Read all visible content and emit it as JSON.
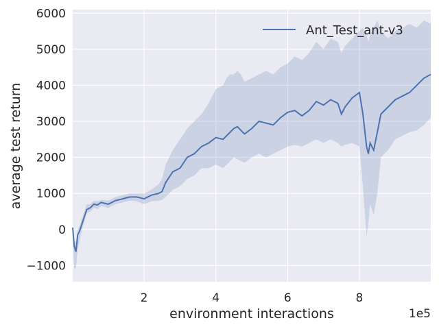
{
  "chart_data": {
    "type": "line",
    "xlabel": "environment interactions",
    "ylabel": "average test return",
    "x_offset_label": "1e5",
    "xlim": [
      0.01,
      9.99
    ],
    "ylim": [
      -1450,
      6100
    ],
    "xticks": [
      2,
      4,
      6,
      8
    ],
    "xtick_labels": [
      "2",
      "4",
      "6",
      "8"
    ],
    "yticks": [
      -1000,
      0,
      1000,
      2000,
      3000,
      4000,
      5000,
      6000
    ],
    "ytick_labels": [
      "−1000",
      "0",
      "1000",
      "2000",
      "3000",
      "4000",
      "5000",
      "6000"
    ],
    "grid": true,
    "legend_position": "top-right",
    "colors": {
      "background": "#eaeaf2",
      "grid": "#ffffff",
      "line": "#4c72b0",
      "band": "#4c72b0"
    },
    "series": [
      {
        "name": "Ant_Test_ant-v3",
        "x": [
          0.01,
          0.05,
          0.1,
          0.15,
          0.2,
          0.3,
          0.4,
          0.5,
          0.6,
          0.7,
          0.8,
          1.0,
          1.2,
          1.4,
          1.6,
          1.8,
          2.0,
          2.2,
          2.4,
          2.5,
          2.6,
          2.8,
          3.0,
          3.2,
          3.4,
          3.6,
          3.8,
          4.0,
          4.2,
          4.3,
          4.4,
          4.5,
          4.6,
          4.7,
          4.8,
          5.0,
          5.2,
          5.4,
          5.6,
          5.8,
          6.0,
          6.2,
          6.4,
          6.6,
          6.8,
          7.0,
          7.2,
          7.4,
          7.5,
          7.6,
          7.8,
          8.0,
          8.1,
          8.2,
          8.25,
          8.3,
          8.4,
          8.5,
          8.6,
          8.8,
          9.0,
          9.2,
          9.4,
          9.6,
          9.8,
          9.99
        ],
        "values": [
          50,
          -450,
          -620,
          -150,
          -50,
          250,
          550,
          600,
          700,
          680,
          750,
          700,
          800,
          850,
          900,
          900,
          850,
          950,
          1000,
          1050,
          1300,
          1600,
          1700,
          2000,
          2100,
          2300,
          2400,
          2550,
          2500,
          2600,
          2700,
          2800,
          2850,
          2750,
          2650,
          2800,
          3000,
          2950,
          2900,
          3100,
          3250,
          3300,
          3150,
          3300,
          3550,
          3450,
          3600,
          3500,
          3200,
          3400,
          3650,
          3800,
          3200,
          2300,
          2100,
          2400,
          2200,
          2700,
          3200,
          3400,
          3600,
          3700,
          3800,
          4000,
          4200,
          4300
        ],
        "upper": [
          150,
          -300,
          -350,
          0,
          100,
          400,
          700,
          700,
          800,
          780,
          820,
          800,
          900,
          950,
          1000,
          1000,
          1000,
          1100,
          1250,
          1400,
          1800,
          2200,
          2500,
          2800,
          3000,
          3200,
          3500,
          3900,
          4000,
          4200,
          4300,
          4300,
          4400,
          4300,
          4100,
          4200,
          4300,
          4400,
          4300,
          4500,
          4600,
          4800,
          4700,
          4900,
          5200,
          5000,
          5300,
          5200,
          4900,
          5100,
          5300,
          5500,
          5600,
          5400,
          5200,
          5400,
          5600,
          5800,
          5500,
          5300,
          5500,
          5600,
          5700,
          5600,
          5800,
          5700
        ],
        "lower": [
          -100,
          -1050,
          -1100,
          -550,
          -300,
          100,
          450,
          500,
          600,
          560,
          650,
          600,
          700,
          750,
          800,
          780,
          700,
          780,
          800,
          820,
          900,
          1100,
          1200,
          1400,
          1500,
          1700,
          1700,
          1800,
          1700,
          1800,
          1900,
          2000,
          1950,
          1900,
          1850,
          2000,
          2100,
          2000,
          2100,
          2200,
          2300,
          2350,
          2300,
          2400,
          2500,
          2400,
          2500,
          2400,
          2300,
          2350,
          2400,
          2300,
          1200,
          -200,
          200,
          700,
          400,
          1000,
          2000,
          2200,
          2500,
          2600,
          2700,
          2750,
          2900,
          3100
        ]
      }
    ]
  }
}
